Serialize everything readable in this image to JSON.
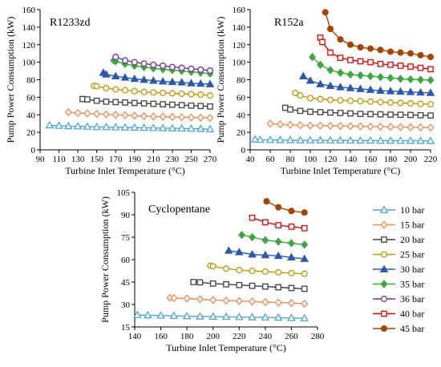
{
  "colors": {
    "10 bar": "#4ba6d9",
    "15 bar": "#f08a50",
    "20 bar": "#404040",
    "25 bar": "#c89400",
    "30 bar": "#2858b0",
    "35 bar": "#3aa83a",
    "36 bar": "#7030a0",
    "40 bar": "#ee0000",
    "45 bar": "#a84400"
  },
  "legend": {
    "entries": [
      {
        "name": "10 bar",
        "marker": "triangle-open"
      },
      {
        "name": "15 bar",
        "marker": "diamond-open"
      },
      {
        "name": "20 bar",
        "marker": "square-open"
      },
      {
        "name": "25 bar",
        "marker": "circle-open"
      },
      {
        "name": "30 bar",
        "marker": "triangle-filled"
      },
      {
        "name": "35 bar",
        "marker": "diamond-filled"
      },
      {
        "name": "36 bar",
        "marker": "circle-open"
      },
      {
        "name": "40 bar",
        "marker": "square-open"
      },
      {
        "name": "45 bar",
        "marker": "circle-filled"
      }
    ]
  },
  "chart_data": [
    {
      "type": "line",
      "title": "R1233zd",
      "xlabel": "Turbine Inlet Temperature (°C)",
      "ylabel": "Pump Power Consumption (kW)",
      "xlim": [
        90,
        270
      ],
      "ylim": [
        0,
        160
      ],
      "xticks": [
        90,
        110,
        130,
        150,
        170,
        190,
        210,
        230,
        250,
        270
      ],
      "yticks": [
        0,
        20,
        40,
        60,
        80,
        100,
        120,
        140,
        160
      ],
      "series": [
        {
          "name": "10 bar",
          "x": [
            100,
            110,
            120,
            130,
            140,
            150,
            160,
            170,
            180,
            190,
            200,
            210,
            220,
            230,
            240,
            250,
            260,
            270
          ],
          "values": [
            28,
            27.5,
            27,
            26.8,
            26.5,
            26.2,
            26,
            25.8,
            25.6,
            25.4,
            25.2,
            25,
            24.8,
            24.6,
            24.4,
            24.2,
            24,
            23.5
          ]
        },
        {
          "name": "15 bar",
          "x": [
            120,
            130,
            140,
            150,
            160,
            170,
            180,
            190,
            200,
            210,
            220,
            230,
            240,
            250,
            260,
            270
          ],
          "values": [
            43,
            42,
            41.5,
            41,
            40.5,
            40,
            39.5,
            39,
            38.5,
            38,
            37.8,
            37.5,
            37.2,
            37,
            36.8,
            36.5
          ]
        },
        {
          "name": "20 bar",
          "x": [
            135,
            140,
            150,
            160,
            170,
            180,
            190,
            200,
            210,
            220,
            230,
            240,
            250,
            260,
            270
          ],
          "values": [
            58,
            57.5,
            56,
            55,
            54.5,
            54,
            53.5,
            53,
            52.5,
            52,
            51.5,
            51,
            50.5,
            50,
            49.5
          ]
        },
        {
          "name": "25 bar",
          "x": [
            147,
            150,
            160,
            170,
            180,
            190,
            200,
            210,
            220,
            230,
            240,
            250,
            260,
            270
          ],
          "values": [
            73,
            72.5,
            70.5,
            69,
            68,
            67,
            66,
            65.5,
            65,
            64.5,
            64,
            63.5,
            63,
            62
          ]
        },
        {
          "name": "30 bar",
          "x": [
            157,
            160,
            170,
            180,
            190,
            200,
            210,
            220,
            230,
            240,
            250,
            260,
            270
          ],
          "values": [
            88,
            86,
            84,
            82.5,
            81,
            80,
            79,
            78,
            77.5,
            77,
            76,
            75.5,
            75
          ]
        },
        {
          "name": "35 bar",
          "x": [
            168,
            170,
            180,
            190,
            200,
            210,
            220,
            230,
            240,
            250,
            260,
            270
          ],
          "values": [
            102,
            101,
            98,
            96,
            94.5,
            93,
            92,
            91,
            90,
            89,
            88,
            87
          ]
        },
        {
          "name": "36 bar",
          "x": [
            170,
            180,
            190,
            200,
            210,
            220,
            230,
            240,
            250,
            260,
            270
          ],
          "values": [
            106,
            102,
            100,
            98.5,
            97,
            96,
            94.5,
            93.5,
            92.5,
            91.5,
            90.5
          ]
        }
      ]
    },
    {
      "type": "line",
      "title": "R152a",
      "xlabel": "Turbine Inlet Temperature (°C)",
      "ylabel": "Pump Power Consumption (kW)",
      "xlim": [
        40,
        220
      ],
      "ylim": [
        0,
        160
      ],
      "xticks": [
        40,
        60,
        80,
        100,
        120,
        140,
        160,
        180,
        200,
        220
      ],
      "yticks": [
        0,
        20,
        40,
        60,
        80,
        100,
        120,
        140,
        160
      ],
      "series": [
        {
          "name": "10 bar",
          "x": [
            45,
            50,
            60,
            70,
            80,
            90,
            100,
            110,
            120,
            130,
            140,
            150,
            160,
            170,
            180,
            190,
            200,
            210,
            220
          ],
          "values": [
            12,
            11.5,
            11.3,
            11.2,
            11.1,
            11,
            11,
            10.9,
            10.8,
            10.8,
            10.7,
            10.6,
            10.6,
            10.5,
            10.5,
            10.4,
            10.4,
            10.3,
            10.2
          ]
        },
        {
          "name": "15 bar",
          "x": [
            60,
            70,
            80,
            90,
            100,
            110,
            120,
            130,
            140,
            150,
            160,
            170,
            180,
            190,
            200,
            210,
            220
          ],
          "values": [
            30,
            29,
            28.5,
            28,
            27.8,
            27.6,
            27.4,
            27.2,
            27,
            26.8,
            26.6,
            26.4,
            26.2,
            26,
            25.8,
            25.6,
            25.4
          ]
        },
        {
          "name": "20 bar",
          "x": [
            75,
            80,
            90,
            100,
            110,
            120,
            130,
            140,
            150,
            160,
            170,
            180,
            190,
            200,
            210,
            220
          ],
          "values": [
            48,
            46,
            44.5,
            43.5,
            43,
            42.5,
            42,
            41.5,
            41,
            40.8,
            40.5,
            40.2,
            40,
            39.8,
            39.5,
            39.2
          ]
        },
        {
          "name": "25 bar",
          "x": [
            85,
            90,
            100,
            110,
            120,
            130,
            140,
            150,
            160,
            170,
            180,
            190,
            200,
            210,
            220
          ],
          "values": [
            65,
            62,
            59,
            58,
            57,
            56.5,
            56,
            55.5,
            55,
            54.5,
            54,
            53.5,
            53,
            52.5,
            52
          ]
        },
        {
          "name": "30 bar",
          "x": [
            93,
            100,
            110,
            120,
            130,
            140,
            150,
            160,
            170,
            180,
            190,
            200,
            210,
            220
          ],
          "values": [
            84,
            79,
            75,
            73,
            71.5,
            70.5,
            69.5,
            68.5,
            67.5,
            67,
            66.5,
            66,
            65.5,
            65
          ]
        },
        {
          "name": "35 bar",
          "x": [
            102,
            110,
            120,
            130,
            140,
            150,
            160,
            170,
            180,
            190,
            200,
            210,
            220
          ],
          "values": [
            106,
            97,
            91,
            88,
            86,
            85,
            84,
            83,
            82,
            81,
            80.5,
            80,
            79.5
          ]
        },
        {
          "name": "40 bar",
          "x": [
            110,
            112,
            120,
            130,
            140,
            150,
            160,
            170,
            180,
            190,
            200,
            210,
            220
          ],
          "values": [
            128,
            123,
            111,
            105,
            102.5,
            101,
            100,
            98,
            97,
            96,
            95,
            93.5,
            92
          ]
        },
        {
          "name": "45 bar",
          "x": [
            115,
            120,
            130,
            140,
            150,
            160,
            170,
            180,
            190,
            200,
            210,
            220
          ],
          "values": [
            157,
            138,
            126,
            120,
            117,
            115.5,
            114,
            112,
            111,
            110,
            108,
            106
          ]
        }
      ]
    },
    {
      "type": "line",
      "title": "Cyclopentane",
      "xlabel": "Turbine Inlet Temperature (°C)",
      "ylabel": "Pump Power Consumption (kW)",
      "xlim": [
        140,
        280
      ],
      "ylim": [
        15,
        105
      ],
      "xticks": [
        140,
        160,
        180,
        200,
        220,
        240,
        260,
        280
      ],
      "yticks": [
        15,
        30,
        45,
        60,
        75,
        90,
        105
      ],
      "series": [
        {
          "name": "10 bar",
          "x": [
            142,
            150,
            160,
            170,
            180,
            190,
            200,
            210,
            220,
            230,
            240,
            250,
            260,
            270
          ],
          "values": [
            23,
            22.8,
            22.6,
            22.4,
            22.2,
            22,
            21.9,
            21.8,
            21.6,
            21.5,
            21.4,
            21.2,
            21,
            20.8
          ]
        },
        {
          "name": "15 bar",
          "x": [
            167,
            170,
            180,
            190,
            200,
            210,
            220,
            230,
            240,
            250,
            260,
            270
          ],
          "values": [
            34.5,
            34.3,
            34,
            33.5,
            33,
            32.6,
            32.3,
            32,
            31.6,
            31.3,
            31,
            30.5
          ]
        },
        {
          "name": "20 bar",
          "x": [
            185,
            190,
            200,
            210,
            220,
            230,
            240,
            250,
            260,
            270
          ],
          "values": [
            45,
            44.8,
            44,
            43.5,
            43,
            42.5,
            42,
            41.5,
            41,
            40.5
          ]
        },
        {
          "name": "25 bar",
          "x": [
            198,
            200,
            210,
            220,
            230,
            240,
            250,
            260,
            270
          ],
          "values": [
            56,
            55.5,
            54,
            53,
            52.5,
            52,
            51.5,
            51,
            50.5
          ]
        },
        {
          "name": "30 bar",
          "x": [
            212,
            220,
            230,
            240,
            250,
            260,
            270
          ],
          "values": [
            66,
            65,
            63.5,
            63,
            62.5,
            61.5,
            60.5
          ]
        },
        {
          "name": "35 bar",
          "x": [
            222,
            230,
            240,
            250,
            260,
            270
          ],
          "values": [
            76.5,
            75,
            73,
            72,
            71,
            70
          ]
        },
        {
          "name": "40 bar",
          "x": [
            230,
            240,
            250,
            260,
            270
          ],
          "values": [
            88,
            85,
            83,
            82,
            81
          ]
        },
        {
          "name": "45 bar",
          "x": [
            241,
            250,
            260,
            270
          ],
          "values": [
            99,
            95,
            92.5,
            91.5
          ]
        }
      ]
    }
  ]
}
